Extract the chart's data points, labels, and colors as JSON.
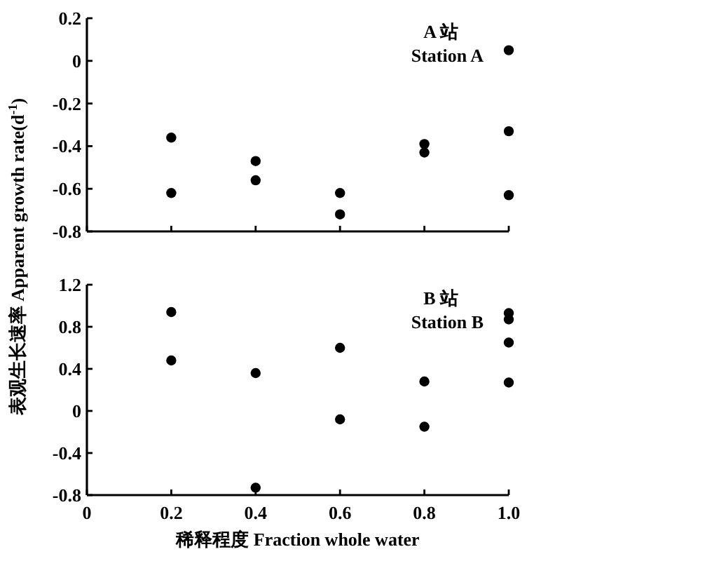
{
  "chart_data": [
    {
      "type": "scatter",
      "color": "#000000",
      "marker": "circle",
      "tick_labels": "y",
      "annotations": [
        "A 站",
        "Station A"
      ],
      "x": [
        0.2,
        0.2,
        0.4,
        0.4,
        0.6,
        0.6,
        0.8,
        0.8,
        1.0,
        1.0,
        1.0
      ],
      "values": [
        -0.36,
        -0.62,
        -0.47,
        -0.56,
        -0.62,
        -0.72,
        -0.39,
        -0.43,
        0.05,
        -0.33,
        -0.63
      ],
      "xlim": [
        0,
        1.0
      ],
      "ylim": [
        -0.8,
        0.2
      ],
      "xticks": [
        0,
        0.2,
        0.4,
        0.6,
        0.8,
        1
      ],
      "yticks": [
        -0.8,
        -0.6,
        -0.4,
        -0.2,
        0,
        0.2
      ]
    },
    {
      "type": "scatter",
      "color": "#000000",
      "marker": "circle",
      "annotations": [
        "B 站",
        "Station B"
      ],
      "xlabel": "稀释程度 Fraction whole water",
      "ylabel": "表观生长速率 Apparent growth rate(d$^{-1}$)",
      "x": [
        0.2,
        0.2,
        0.4,
        0.4,
        0.6,
        0.6,
        0.8,
        0.8,
        1.0,
        1.0,
        1.0,
        1.0
      ],
      "values": [
        0.94,
        0.48,
        0.36,
        -0.73,
        0.6,
        -0.08,
        0.28,
        -0.15,
        0.93,
        0.87,
        0.65,
        0.27
      ],
      "xlim": [
        0,
        1.0
      ],
      "ylim": [
        -0.8,
        1.2
      ],
      "xticks": [
        0,
        0.2,
        0.4,
        0.6,
        0.8,
        {
          "value": 1.0,
          "label": "1.0"
        }
      ],
      "yticks": [
        -0.8,
        -0.4,
        0,
        0.4,
        0.8,
        1.2
      ]
    }
  ]
}
